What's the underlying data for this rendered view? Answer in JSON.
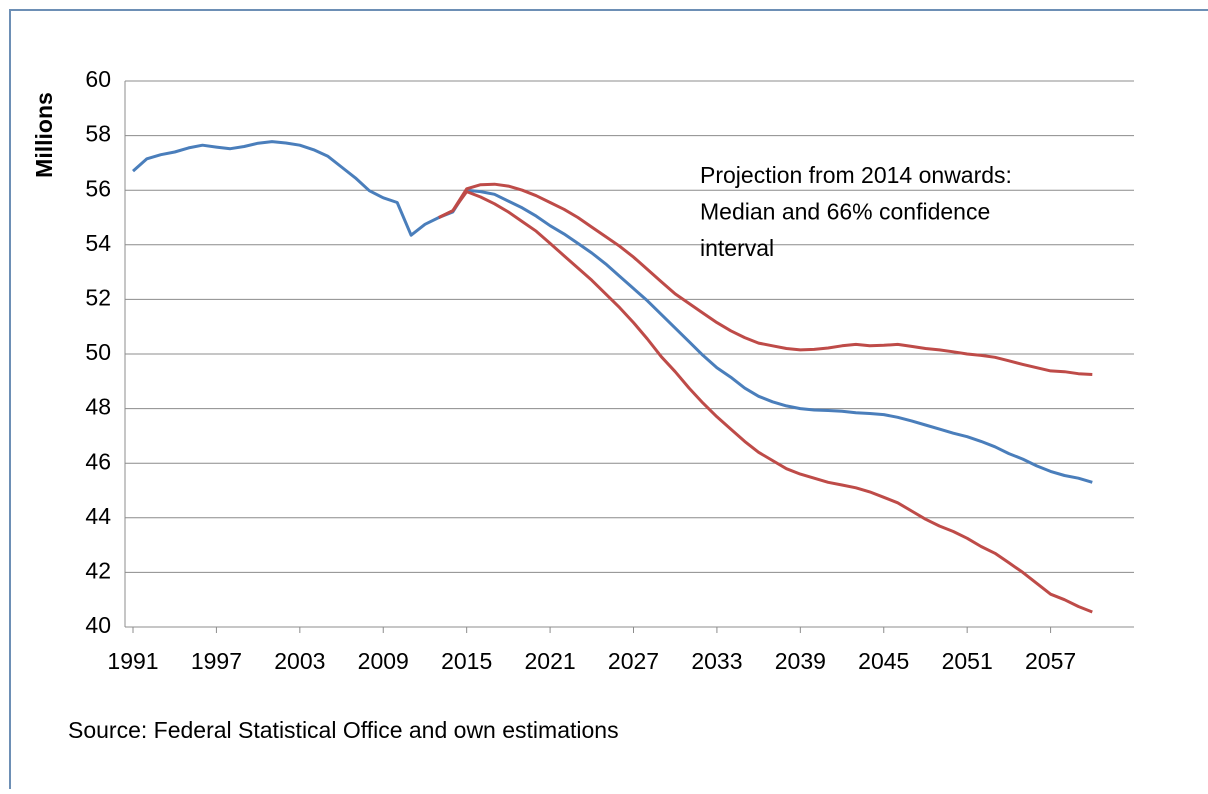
{
  "chart_data": {
    "type": "line",
    "ylabel": "Millions",
    "annotation": [
      "Projection from 2014 onwards:",
      "Median and 66% confidence",
      "interval"
    ],
    "source": "Source: Federal Statistical Office and own estimations",
    "x": [
      1991,
      1992,
      1993,
      1994,
      1995,
      1996,
      1997,
      1998,
      1999,
      2000,
      2001,
      2002,
      2003,
      2004,
      2005,
      2006,
      2007,
      2008,
      2009,
      2010,
      2011,
      2012,
      2013,
      2014,
      2015,
      2016,
      2017,
      2018,
      2019,
      2020,
      2021,
      2022,
      2023,
      2024,
      2025,
      2026,
      2027,
      2028,
      2029,
      2030,
      2031,
      2032,
      2033,
      2034,
      2035,
      2036,
      2037,
      2038,
      2039,
      2040,
      2041,
      2042,
      2043,
      2044,
      2045,
      2046,
      2047,
      2048,
      2049,
      2050,
      2051,
      2052,
      2053,
      2054,
      2055,
      2056,
      2057,
      2058,
      2059,
      2060
    ],
    "series": [
      {
        "color": "#4a7ebb",
        "values": [
          56.7,
          57.15,
          57.3,
          57.4,
          57.55,
          57.65,
          57.58,
          57.52,
          57.6,
          57.72,
          57.78,
          57.73,
          57.65,
          57.48,
          57.25,
          56.85,
          56.45,
          55.98,
          55.72,
          55.55,
          54.35,
          54.75,
          55.0,
          55.2,
          56.0,
          55.95,
          55.85,
          55.6,
          55.35,
          55.05,
          54.7,
          54.4,
          54.05,
          53.7,
          53.3,
          52.85,
          52.4,
          51.95,
          51.45,
          50.95,
          50.45,
          49.95,
          49.5,
          49.15,
          48.75,
          48.45,
          48.25,
          48.1,
          48.0,
          47.95,
          47.93,
          47.9,
          47.85,
          47.82,
          47.78,
          47.68,
          47.55,
          47.4,
          47.25,
          47.1,
          46.97,
          46.8,
          46.6,
          46.35,
          46.15,
          45.9,
          45.7,
          45.55,
          45.45,
          45.3
        ]
      },
      {
        "color": "#be4b48",
        "values": [
          null,
          null,
          null,
          null,
          null,
          null,
          null,
          null,
          null,
          null,
          null,
          null,
          null,
          null,
          null,
          null,
          null,
          null,
          null,
          null,
          null,
          null,
          55.0,
          55.25,
          56.05,
          56.2,
          56.22,
          56.15,
          56.0,
          55.8,
          55.55,
          55.3,
          55.0,
          54.65,
          54.3,
          53.95,
          53.55,
          53.1,
          52.65,
          52.2,
          51.85,
          51.5,
          51.15,
          50.85,
          50.6,
          50.4,
          50.3,
          50.2,
          50.15,
          50.17,
          50.22,
          50.3,
          50.35,
          50.3,
          50.32,
          50.35,
          50.28,
          50.2,
          50.15,
          50.08,
          50.0,
          49.95,
          49.88,
          49.75,
          49.62,
          49.5,
          49.38,
          49.35,
          49.28,
          49.25
        ]
      },
      {
        "color": "#be4b48",
        "values": [
          null,
          null,
          null,
          null,
          null,
          null,
          null,
          null,
          null,
          null,
          null,
          null,
          null,
          null,
          null,
          null,
          null,
          null,
          null,
          null,
          null,
          null,
          55.0,
          55.25,
          55.95,
          55.75,
          55.5,
          55.2,
          54.85,
          54.5,
          54.05,
          53.6,
          53.15,
          52.7,
          52.2,
          51.7,
          51.15,
          50.55,
          49.9,
          49.35,
          48.75,
          48.2,
          47.7,
          47.25,
          46.8,
          46.4,
          46.1,
          45.8,
          45.6,
          45.45,
          45.3,
          45.2,
          45.1,
          44.95,
          44.75,
          44.55,
          44.25,
          43.95,
          43.7,
          43.5,
          43.25,
          42.95,
          42.7,
          42.35,
          42.0,
          41.6,
          41.2,
          41.0,
          40.75,
          40.55
        ]
      }
    ],
    "xlim": [
      1991,
      2063
    ],
    "xticks": [
      1991,
      1997,
      2003,
      2009,
      2015,
      2021,
      2027,
      2033,
      2039,
      2045,
      2051,
      2057
    ],
    "ylim": [
      40,
      60
    ],
    "yticks": [
      40,
      42,
      44,
      46,
      48,
      50,
      52,
      54,
      56,
      58,
      60
    ],
    "grid": true
  }
}
